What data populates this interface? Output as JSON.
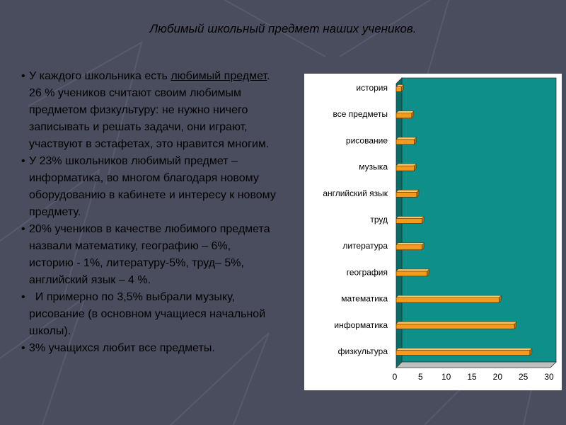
{
  "slide": {
    "title": "Любимый школьный предмет наших учеников."
  },
  "bullets": [
    {
      "marker": "•",
      "before": "У каждого школьника есть ",
      "underlined": "любимый предмет",
      "after": ". 26 % учеников считают своим любимым предметом физкультуру: не нужно ничего записывать и решать задачи, они играют, участвуют в эстафетах, это нравится многим."
    },
    {
      "marker": "•",
      "before": "У 23% школьников любимый предмет – информатика, во многом благодаря новому оборудованию в кабинете и интересу к новому предмету.",
      "underlined": "",
      "after": ""
    },
    {
      "marker": "•",
      "before": "20% учеников в качестве любимого предмета назвали математику, географию – 6%, историю - 1%, литературу-5%, труд– 5%, английский язык – 4 %.",
      "underlined": "",
      "after": ""
    },
    {
      "marker": "•",
      "before": "  И примерно по 3,5% выбрали музыку, рисование (в основном учащиеся начальной школы).",
      "underlined": "",
      "after": ""
    },
    {
      "marker": "•",
      "before": "3% учащихся любит все предметы.",
      "underlined": "",
      "after": ""
    }
  ],
  "colors": {
    "background": "#4a4d5e",
    "plot_area": "#0f8f8a",
    "plot_floor": "#0a6b67",
    "bar": "#f59a1c",
    "bar_top": "#ffc870",
    "bar_side": "#b86a08"
  },
  "chart_data": {
    "type": "bar",
    "orientation": "horizontal",
    "style": "3d",
    "categories": [
      "история",
      "все предметы",
      "рисование",
      "музыка",
      "английский язык",
      "труд",
      "литература",
      "география",
      "математика",
      "информатика",
      "физкультура"
    ],
    "values": [
      1,
      3,
      3.5,
      3.5,
      4,
      5,
      5,
      6,
      20,
      23,
      26
    ],
    "xlim": [
      0,
      30
    ],
    "xticks": [
      0,
      5,
      10,
      15,
      20,
      25,
      30
    ],
    "title": "",
    "xlabel": "",
    "ylabel": "",
    "grid": false,
    "legend": "none"
  }
}
